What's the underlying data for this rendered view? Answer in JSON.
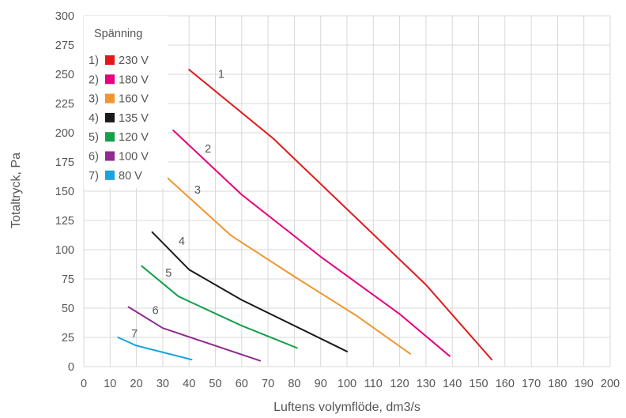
{
  "chart_data": {
    "type": "line",
    "xlabel": "Luftens volymflöde, dm3/s",
    "ylabel": "Totaltryck, Pa",
    "xlim": [
      0,
      200
    ],
    "ylim": [
      0,
      300
    ],
    "xticks": [
      0,
      10,
      20,
      30,
      40,
      50,
      60,
      70,
      80,
      90,
      100,
      110,
      120,
      130,
      140,
      150,
      160,
      170,
      180,
      190,
      200
    ],
    "yticks": [
      0,
      25,
      50,
      75,
      100,
      125,
      150,
      175,
      200,
      225,
      250,
      275,
      300
    ],
    "grid": true,
    "legend": {
      "title": "Spänning",
      "position": "top-left"
    },
    "series": [
      {
        "name": "230 V",
        "index_label": "1)",
        "curve_label": "1",
        "color": "#e0191c",
        "points": [
          [
            40,
            254
          ],
          [
            72,
            195
          ],
          [
            130,
            70
          ],
          [
            155,
            6
          ]
        ],
        "label_at": [
          51,
          247
        ]
      },
      {
        "name": "180 V",
        "index_label": "2)",
        "curve_label": "2",
        "color": "#e6007e",
        "points": [
          [
            34,
            202
          ],
          [
            60,
            147
          ],
          [
            90,
            94
          ],
          [
            120,
            45
          ],
          [
            139,
            9
          ]
        ],
        "label_at": [
          46,
          183
        ]
      },
      {
        "name": "160 V",
        "index_label": "3)",
        "curve_label": "3",
        "color": "#f0962f",
        "points": [
          [
            30,
            165
          ],
          [
            56,
            112
          ],
          [
            80,
            77
          ],
          [
            104,
            43
          ],
          [
            124,
            11
          ]
        ],
        "label_at": [
          42,
          148
        ]
      },
      {
        "name": "135 V",
        "index_label": "4)",
        "curve_label": "4",
        "color": "#1a1a1a",
        "points": [
          [
            26,
            115
          ],
          [
            40,
            83
          ],
          [
            60,
            57
          ],
          [
            100,
            13
          ]
        ],
        "label_at": [
          36,
          104
        ]
      },
      {
        "name": "120 V",
        "index_label": "5)",
        "curve_label": "5",
        "color": "#14a04a",
        "points": [
          [
            22,
            86
          ],
          [
            36,
            60
          ],
          [
            60,
            35
          ],
          [
            81,
            16
          ]
        ],
        "label_at": [
          31,
          77
        ]
      },
      {
        "name": "100 V",
        "index_label": "6)",
        "curve_label": "6",
        "color": "#8e2a90",
        "points": [
          [
            17,
            51
          ],
          [
            30,
            33
          ],
          [
            67,
            5
          ]
        ],
        "label_at": [
          26,
          45
        ]
      },
      {
        "name": "80 V",
        "index_label": "7)",
        "curve_label": "7",
        "color": "#1aa3df",
        "points": [
          [
            13,
            25
          ],
          [
            20,
            18
          ],
          [
            41,
            6
          ]
        ],
        "label_at": [
          18,
          25
        ]
      }
    ]
  }
}
